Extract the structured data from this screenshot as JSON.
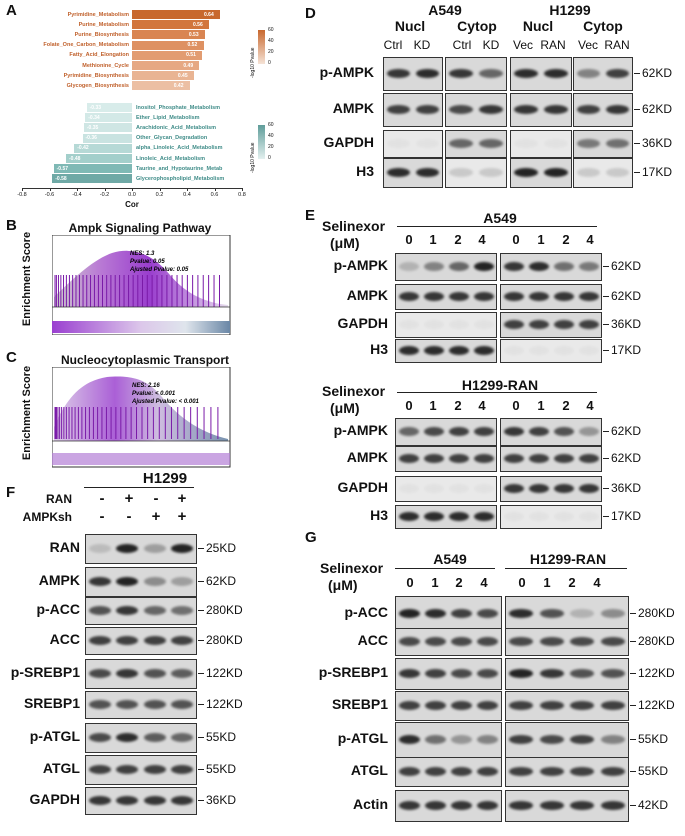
{
  "panels": {
    "A": "A",
    "B": "B",
    "C": "C",
    "D": "D",
    "E": "E",
    "F": "F",
    "G": "G"
  },
  "panelA": {
    "up": [
      {
        "label": "Pyrimidine_Metabolism",
        "value": "0.64"
      },
      {
        "label": "Purine_Metabolism",
        "value": "0.56"
      },
      {
        "label": "Purine_Biosynthesis",
        "value": "0.53"
      },
      {
        "label": "Folate_One_Carbon_Metabolism",
        "value": "0.52"
      },
      {
        "label": "Fatty_Acid_Elongation",
        "value": "0.51"
      },
      {
        "label": "Methionine_Cycle",
        "value": "0.49"
      },
      {
        "label": "Pyrimidine_Biosynthesis",
        "value": "0.45"
      },
      {
        "label": "Glycogen_Biosynthesis",
        "value": "0.42"
      }
    ],
    "down": [
      {
        "label": "Inositol_Phosphate_Metabolism",
        "value": "-0.33"
      },
      {
        "label": "Ether_Lipid_Metabolism",
        "value": "-0.34"
      },
      {
        "label": "Arachidonic_Acid_Metabolism",
        "value": "-0.35"
      },
      {
        "label": "Other_Glycan_Degradation",
        "value": "-0.36"
      },
      {
        "label": "alpha_Linoleic_Acid_Metabolism",
        "value": "-0.42"
      },
      {
        "label": "Linoleic_Acid_Metabolism",
        "value": "-0.48"
      },
      {
        "label": "Taurine_and_Hypotaurine_Metab",
        "value": "-0.57"
      },
      {
        "label": "Glycerophospholipid_Metabolism",
        "value": "-0.58"
      }
    ],
    "xticks": [
      "-0.8",
      "-0.6",
      "-0.4",
      "-0.2",
      "0.0",
      "0.2",
      "0.4",
      "0.6",
      "0.8"
    ],
    "xlabel": "Cor",
    "legend_title": "-log10 Pvalue",
    "legend_ticks_up": [
      "60",
      "40",
      "20",
      "0"
    ],
    "legend_ticks_down": [
      "60",
      "40",
      "20",
      "0"
    ],
    "colors": {
      "up": "#c8682e",
      "down": "#6fa9a6"
    }
  },
  "panelB": {
    "title": "Ampk Signaling Pathway",
    "ylabel": "Enrichment Score",
    "stats": [
      "NES: 1.3",
      "Pvalue: 0.05",
      "Ajusted Pvalue: 0.05"
    ]
  },
  "panelC": {
    "title": "Nucleocytoplasmic Transport",
    "ylabel": "Enrichment Score",
    "stats": [
      "NES: 2.16",
      "Pvalue: < 0.001",
      "Ajusted Pvalue: < 0.001"
    ]
  },
  "panelD": {
    "cells": [
      "A549",
      "H1299"
    ],
    "fractions": [
      "Nucl",
      "Cytop",
      "Nucl",
      "Cytop"
    ],
    "lanes": [
      "Ctrl",
      "KD",
      "Ctrl",
      "KD",
      "Vec",
      "RAN",
      "Vec",
      "RAN"
    ],
    "rows": [
      {
        "name": "p-AMPK",
        "kd": "62KD"
      },
      {
        "name": "AMPK",
        "kd": "62KD"
      },
      {
        "name": "GAPDH",
        "kd": "36KD"
      },
      {
        "name": "H3",
        "kd": "17KD"
      }
    ]
  },
  "panelE": {
    "treatment_label": [
      "Selinexor",
      "(μM)"
    ],
    "top_cell": "A549",
    "bottom_cell": "H1299-RAN",
    "doses": [
      "0",
      "1",
      "2",
      "4",
      "0",
      "1",
      "2",
      "4"
    ],
    "rows": [
      {
        "name": "p-AMPK",
        "kd": "62KD"
      },
      {
        "name": "AMPK",
        "kd": "62KD"
      },
      {
        "name": "GAPDH",
        "kd": "36KD"
      },
      {
        "name": "H3",
        "kd": "17KD"
      }
    ]
  },
  "panelF": {
    "cell": "H1299",
    "conditions": [
      {
        "name": "RAN",
        "values": [
          "-",
          "+",
          "-",
          "+"
        ]
      },
      {
        "name": "AMPKsh",
        "values": [
          "-",
          "-",
          "+",
          "+"
        ]
      }
    ],
    "rows": [
      {
        "name": "RAN",
        "kd": "25KD"
      },
      {
        "name": "AMPK",
        "kd": "62KD"
      },
      {
        "name": "p-ACC",
        "kd": "280KD"
      },
      {
        "name": "ACC",
        "kd": "280KD"
      },
      {
        "name": "p-SREBP1",
        "kd": "122KD"
      },
      {
        "name": "SREBP1",
        "kd": "122KD"
      },
      {
        "name": "p-ATGL",
        "kd": "55KD"
      },
      {
        "name": "ATGL",
        "kd": "55KD"
      },
      {
        "name": "GAPDH",
        "kd": "36KD"
      }
    ]
  },
  "panelG": {
    "treatment_label": [
      "Selinexor",
      "(μM)"
    ],
    "cells": [
      "A549",
      "H1299-RAN"
    ],
    "doses": [
      "0",
      "1",
      "2",
      "4",
      "0",
      "1",
      "2",
      "4"
    ],
    "rows": [
      {
        "name": "p-ACC",
        "kd": "280KD"
      },
      {
        "name": "ACC",
        "kd": "280KD"
      },
      {
        "name": "p-SREBP1",
        "kd": "122KD"
      },
      {
        "name": "SREBP1",
        "kd": "122KD"
      },
      {
        "name": "p-ATGL",
        "kd": "55KD"
      },
      {
        "name": "ATGL",
        "kd": "55KD"
      },
      {
        "name": "Actin",
        "kd": "42KD"
      }
    ]
  }
}
